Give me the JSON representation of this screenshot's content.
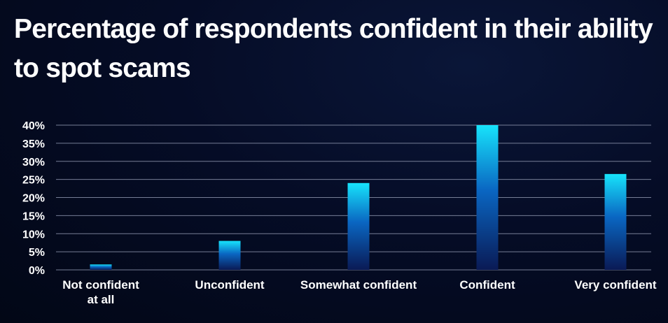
{
  "chart_data": {
    "type": "bar",
    "title": "Percentage of respondents confident in their ability to spot scams",
    "xlabel": "",
    "ylabel": "",
    "categories": [
      [
        "Not confident",
        "at all"
      ],
      [
        "Unconfident"
      ],
      [
        "Somewhat confident"
      ],
      [
        "Confident"
      ],
      [
        "Very confident"
      ]
    ],
    "values": [
      1.5,
      8,
      24,
      40,
      26.5
    ],
    "ylim": [
      0,
      40
    ],
    "yticks": [
      0,
      5,
      10,
      15,
      20,
      25,
      30,
      35,
      40
    ],
    "ytick_labels": [
      "0%",
      "5%",
      "10%",
      "15%",
      "20%",
      "25%",
      "30%",
      "35%",
      "40%"
    ],
    "grid": true,
    "legend": "none",
    "colors": {
      "bar_top": "#17e3fb",
      "bar_mid": "#0a66c2",
      "bar_bottom": "#0a1a55",
      "gridline": "#8a92aa",
      "background": "#030a22",
      "text": "#ffffff"
    }
  }
}
